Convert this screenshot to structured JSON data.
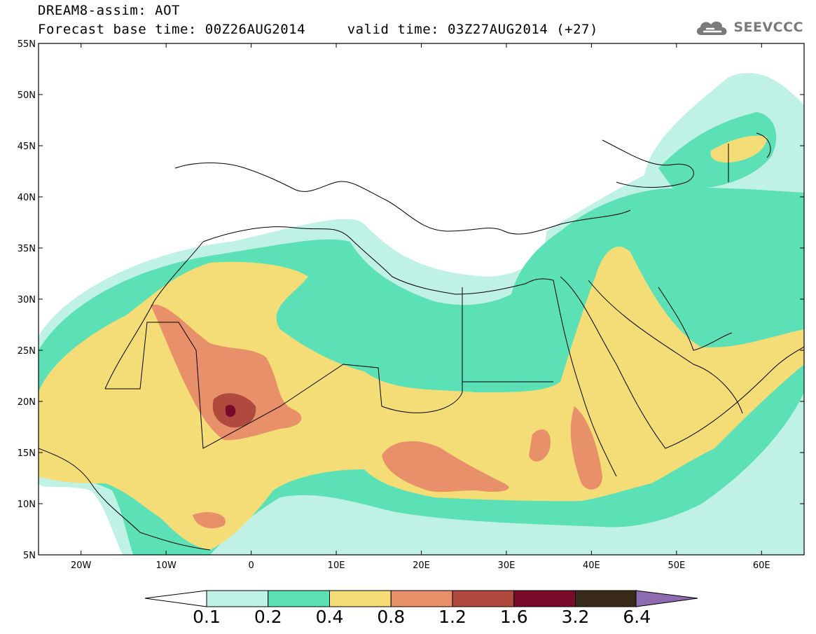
{
  "header": {
    "title_line_1": "DREAM8-assim: AOT",
    "title_line_2": "Forecast base time: 00Z26AUG2014     valid time: 03Z27AUG2014 (+27)"
  },
  "logo": {
    "text": "SEEVCCC",
    "icon": "cloud-icon",
    "color": "#7a7a7a"
  },
  "map": {
    "lat_range": [
      5,
      55
    ],
    "lon_range": [
      -25,
      65
    ],
    "lat_ticks": [
      {
        "value": 55,
        "label": "55N"
      },
      {
        "value": 50,
        "label": "50N"
      },
      {
        "value": 45,
        "label": "45N"
      },
      {
        "value": 40,
        "label": "40N"
      },
      {
        "value": 35,
        "label": "35N"
      },
      {
        "value": 30,
        "label": "30N"
      },
      {
        "value": 25,
        "label": "25N"
      },
      {
        "value": 20,
        "label": "20N"
      },
      {
        "value": 15,
        "label": "15N"
      },
      {
        "value": 10,
        "label": "10N"
      },
      {
        "value": 5,
        "label": "5N"
      }
    ],
    "lon_ticks": [
      {
        "value": -20,
        "label": "20W"
      },
      {
        "value": -10,
        "label": "10W"
      },
      {
        "value": 0,
        "label": "0"
      },
      {
        "value": 10,
        "label": "10E"
      },
      {
        "value": 20,
        "label": "20E"
      },
      {
        "value": 30,
        "label": "30E"
      },
      {
        "value": 40,
        "label": "40E"
      },
      {
        "value": 50,
        "label": "50E"
      },
      {
        "value": 60,
        "label": "60E"
      }
    ]
  },
  "colorbar": {
    "labels": [
      "0.1",
      "0.2",
      "0.4",
      "0.8",
      "1.2",
      "1.6",
      "3.2",
      "6.4"
    ],
    "colors": [
      "#ffffff",
      "#bff2e4",
      "#5ce0b5",
      "#f4dd76",
      "#e8906a",
      "#b04a3e",
      "#7a0a2a",
      "#3a2a1a",
      "#8e6ab0"
    ]
  },
  "palette": {
    "c1": "#bff2e4",
    "c2": "#5ce0b5",
    "c3": "#f4dd76",
    "c4": "#e8906a",
    "c5": "#b04a3e",
    "c6": "#7a0a2a",
    "border": "#000000"
  }
}
